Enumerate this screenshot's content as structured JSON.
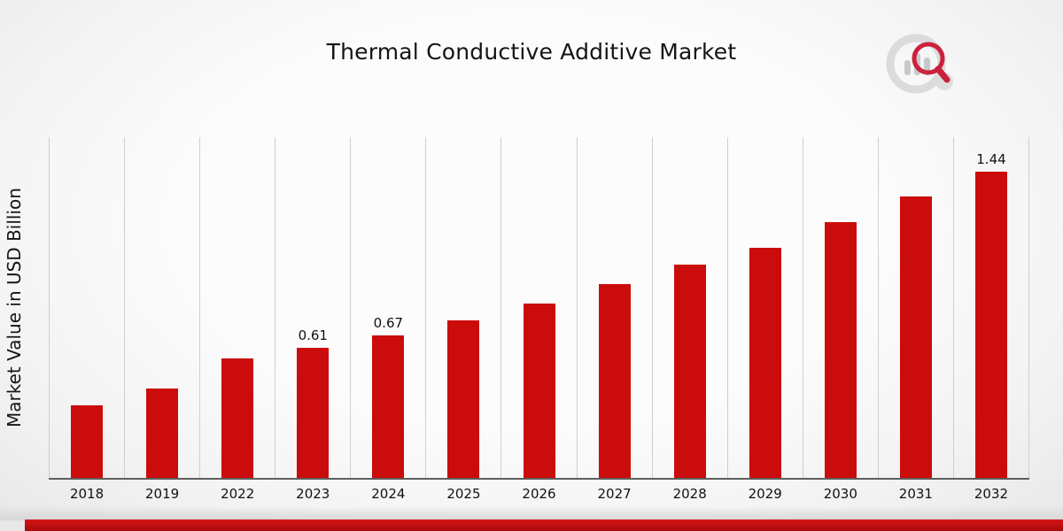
{
  "title": "Thermal Conductive Additive Market",
  "ylabel": "Market Value in USD Billion",
  "brand_logo": "magnifier-bar-chart-logo",
  "footer": {
    "accent_color": "#b80d0d"
  },
  "chart_data": {
    "type": "bar",
    "title": "Thermal Conductive Additive Market",
    "xlabel": "",
    "ylabel": "Market Value in USD Billion",
    "categories": [
      "2018",
      "2019",
      "2022",
      "2023",
      "2024",
      "2025",
      "2026",
      "2027",
      "2028",
      "2029",
      "2030",
      "2031",
      "2032"
    ],
    "values": [
      0.34,
      0.42,
      0.56,
      0.61,
      0.67,
      0.74,
      0.82,
      0.91,
      1.0,
      1.08,
      1.2,
      1.32,
      1.44
    ],
    "labels": [
      null,
      null,
      null,
      "0.61",
      "0.67",
      null,
      null,
      null,
      null,
      null,
      null,
      null,
      "1.44"
    ],
    "bar_color": "#cb0c0c",
    "ylim": [
      0,
      1.6
    ],
    "grid": "vertical-only",
    "legend": "none"
  }
}
